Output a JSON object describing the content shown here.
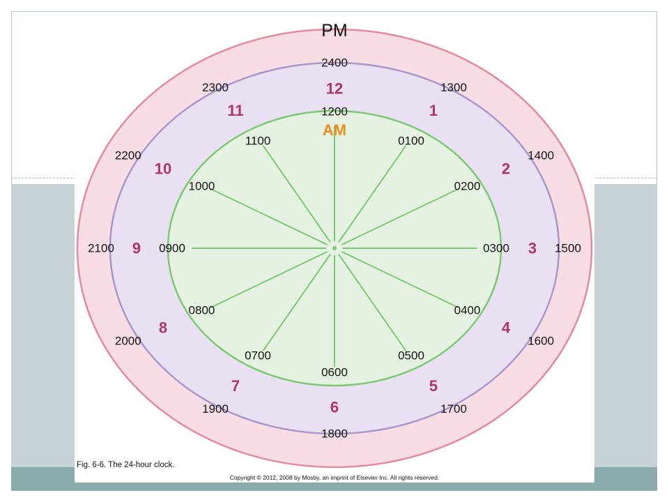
{
  "figure": {
    "pm_label": "PM",
    "am_label": "AM",
    "caption": "Fig. 6-6. The 24-hour clock.",
    "copyright": "Copyright © 2012, 2008 by Mosby, an imprint of Elsevier Inc. All rights reserved."
  },
  "clock": {
    "outer_times": [
      "2400",
      "1300",
      "1400",
      "1500",
      "1600",
      "1700",
      "1800",
      "1900",
      "2000",
      "2100",
      "2200",
      "2300"
    ],
    "hour_numbers": [
      "12",
      "1",
      "2",
      "3",
      "4",
      "5",
      "6",
      "7",
      "8",
      "9",
      "10",
      "11"
    ],
    "inner_times": [
      "1200",
      "0100",
      "0200",
      "0300",
      "0400",
      "0500",
      "0600",
      "0700",
      "0800",
      "0900",
      "1000",
      "1100"
    ]
  },
  "colors": {
    "outer_ring": "#f8dde5",
    "outer_ring_border": "#e38a9e",
    "middle_ring": "#e9e0f1",
    "middle_ring_border": "#a896cc",
    "inner_face": "#e5f2e2",
    "spokes": "#7dc874",
    "hour_numbers": "#b0356b",
    "am_label": "#f08c1e",
    "slide_band": "#c7d2d7",
    "slide_footer": "#8aabab"
  }
}
